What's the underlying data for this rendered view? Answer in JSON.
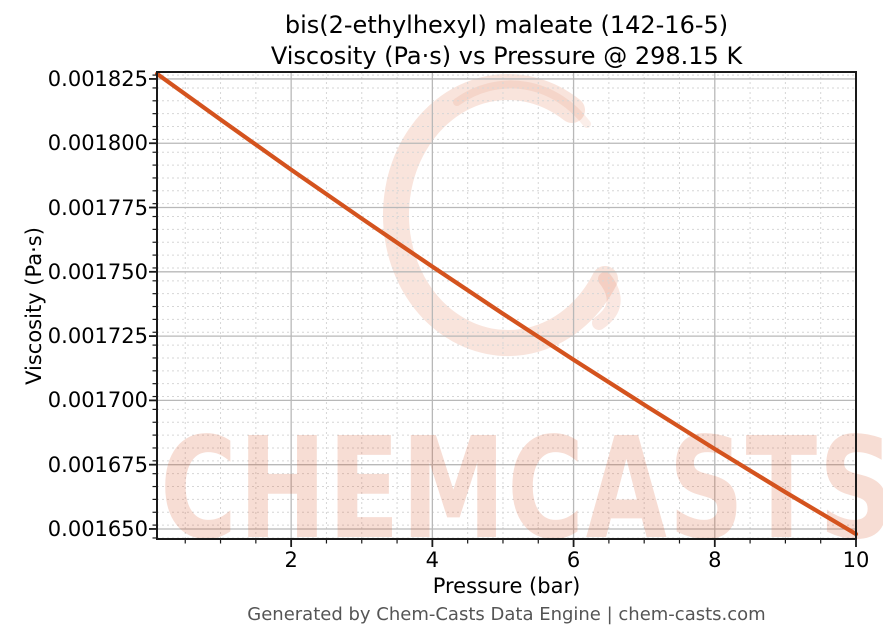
{
  "title": {
    "line1": "bis(2-ethylhexyl) maleate (142-16-5)",
    "line2": "Viscosity (Pa·s) vs Pressure @ 298.15 K"
  },
  "footer": {
    "text": "Generated by Chem-Casts Data Engine | chem-casts.com"
  },
  "watermark": {
    "text": "CHEMCASTS",
    "color": "#d95428",
    "logo": "brush-circle"
  },
  "chart_data": {
    "type": "line",
    "title": "bis(2-ethylhexyl) maleate (142-16-5) — Viscosity (Pa·s) vs Pressure @ 298.15 K",
    "xlabel": "Pressure (bar)",
    "ylabel": "Viscosity (Pa·s)",
    "x": [
      0.1,
      1,
      2,
      3,
      4,
      5,
      6,
      7,
      8,
      9,
      10
    ],
    "y": [
      0.001827,
      0.0018092,
      0.0017897,
      0.0017707,
      0.001752,
      0.0017337,
      0.0017158,
      0.0016983,
      0.0016811,
      0.0016643,
      0.001648
    ],
    "xlim": [
      0.1,
      10
    ],
    "ylim": [
      0.0016461,
      0.0018277
    ],
    "xticks": [
      2,
      4,
      6,
      8,
      10
    ],
    "xtick_labels": [
      "2",
      "4",
      "6",
      "8",
      "10"
    ],
    "yticks": [
      0.00165,
      0.001675,
      0.0017,
      0.001725,
      0.00175,
      0.001775,
      0.0018,
      0.001825
    ],
    "ytick_labels": [
      "0.001650",
      "0.001675",
      "0.001700",
      "0.001725",
      "0.001750",
      "0.001775",
      "0.001800",
      "0.001825"
    ],
    "x_minor_step": 0.5,
    "y_minor_step": 5e-06,
    "grid": true,
    "legend": "none",
    "line_color": "#d4531e",
    "line_width": 4.2,
    "grid_major_color": "#b8b8b8",
    "grid_minor_color": "#d6d6d6",
    "spine_color": "#1a1a1a"
  }
}
